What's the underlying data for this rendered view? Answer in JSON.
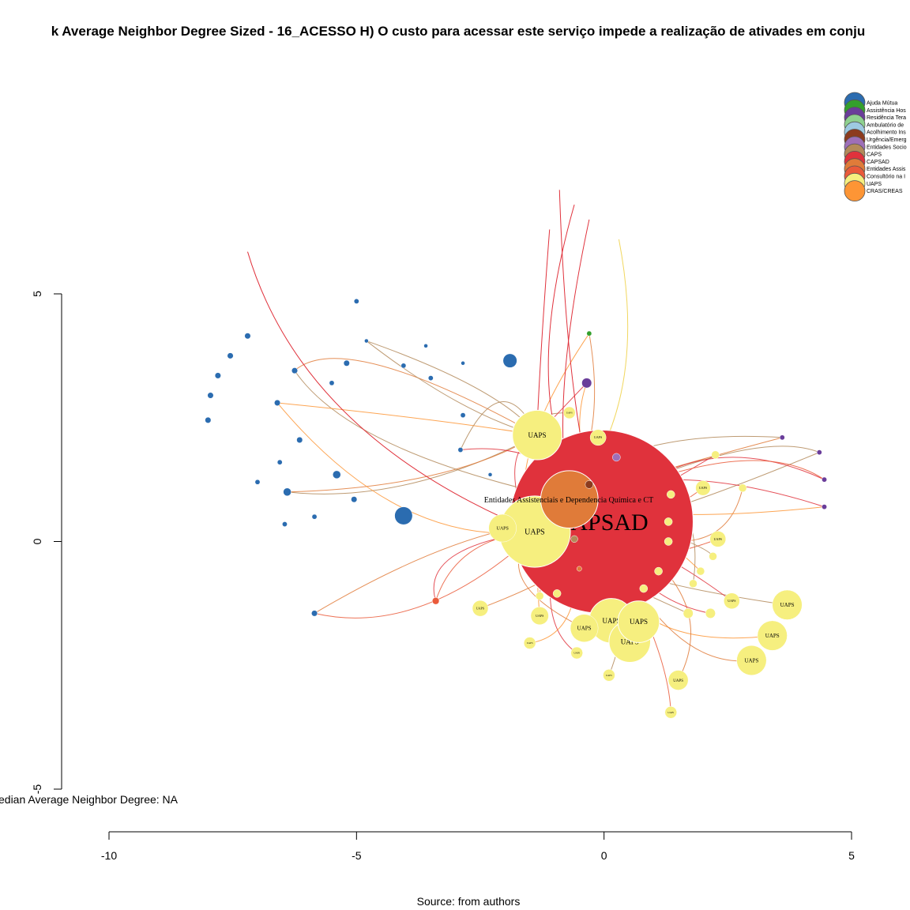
{
  "title": "k Average Neighbor Degree Sized - 16_ACESSO H) O custo para acessar este serviço impede a realização de ativades em conju",
  "median_text": "edian Average Neighbor Degree: NA",
  "caption": "Source: from authors",
  "axes": {
    "x": {
      "range": [
        -10,
        5
      ],
      "ticks": [
        -10,
        -5,
        0,
        5
      ],
      "tick_labels": [
        "-10",
        "-5",
        "0",
        "5"
      ]
    },
    "y": {
      "range": [
        -5,
        5
      ],
      "ticks": [
        -5,
        0,
        5
      ],
      "tick_labels": [
        "-5",
        "0",
        "5"
      ]
    }
  },
  "legend": [
    {
      "label": "Ajuda Mútua",
      "color": "#2b6cb0"
    },
    {
      "label": "Assistência Hos",
      "color": "#33a02c"
    },
    {
      "label": "Residência Tera",
      "color": "#6a3d9a"
    },
    {
      "label": "Ambulatório de",
      "color": "#8fd18f"
    },
    {
      "label": "Acolhimento Ins",
      "color": "#9ecae1"
    },
    {
      "label": "Urgência/Emerg",
      "color": "#8c3b1e"
    },
    {
      "label": "Entidades Socio",
      "color": "#9e6fb8"
    },
    {
      "label": "CAPS",
      "color": "#b38a5a"
    },
    {
      "label": "CAPSAD",
      "color": "#e0323c"
    },
    {
      "label": "Entidades Assis",
      "color": "#e07b39"
    },
    {
      "label": "Consultório na I",
      "color": "#ea5a3a"
    },
    {
      "label": "UAPS",
      "color": "#f6ef7f"
    },
    {
      "label": "CRAS/CREAS",
      "color": "#fd9535"
    }
  ],
  "nodes": [
    {
      "x": -0.05,
      "y": 0.4,
      "r": 1.85,
      "color": "#e0323c",
      "label": "CAPSAD",
      "fs": 30
    },
    {
      "x": -0.7,
      "y": 0.85,
      "r": 0.58,
      "color": "#e07b39",
      "label": "",
      "fs": 0
    },
    {
      "x": -1.4,
      "y": 0.2,
      "r": 0.72,
      "color": "#f6ef7f",
      "label": "UAPS",
      "fs": 10
    },
    {
      "x": -1.35,
      "y": 2.15,
      "r": 0.5,
      "color": "#f6ef7f",
      "label": "UAPS",
      "fs": 9
    },
    {
      "x": 0.15,
      "y": -1.6,
      "r": 0.45,
      "color": "#f6ef7f",
      "label": "UAPS",
      "fs": 9
    },
    {
      "x": 0.7,
      "y": -1.62,
      "r": 0.42,
      "color": "#f6ef7f",
      "label": "UAPS",
      "fs": 9
    },
    {
      "x": 0.52,
      "y": -2.02,
      "r": 0.42,
      "color": "#f6ef7f",
      "label": "UAPS",
      "fs": 9
    },
    {
      "x": -0.4,
      "y": -1.75,
      "r": 0.28,
      "color": "#f6ef7f",
      "label": "UAPS",
      "fs": 7
    },
    {
      "x": 3.7,
      "y": -1.28,
      "r": 0.3,
      "color": "#f6ef7f",
      "label": "UAPS",
      "fs": 7
    },
    {
      "x": 3.4,
      "y": -1.9,
      "r": 0.3,
      "color": "#f6ef7f",
      "label": "UAPS",
      "fs": 7
    },
    {
      "x": 2.98,
      "y": -2.4,
      "r": 0.3,
      "color": "#f6ef7f",
      "label": "UAPS",
      "fs": 7
    },
    {
      "x": -2.05,
      "y": 0.27,
      "r": 0.28,
      "color": "#f6ef7f",
      "label": "UAPS",
      "fs": 6
    },
    {
      "x": 1.5,
      "y": -2.8,
      "r": 0.2,
      "color": "#f6ef7f",
      "label": "UAPS",
      "fs": 5
    },
    {
      "x": 2.58,
      "y": -1.2,
      "r": 0.16,
      "color": "#f6ef7f",
      "label": "UAPS",
      "fs": 4
    },
    {
      "x": -1.3,
      "y": -1.5,
      "r": 0.18,
      "color": "#f6ef7f",
      "label": "UAPS",
      "fs": 4
    },
    {
      "x": -2.5,
      "y": -1.35,
      "r": 0.16,
      "color": "#f6ef7f",
      "label": "UAPS",
      "fs": 4
    },
    {
      "x": 2.3,
      "y": 0.05,
      "r": 0.16,
      "color": "#f6ef7f",
      "label": "UAPS",
      "fs": 4
    },
    {
      "x": -0.12,
      "y": 2.1,
      "r": 0.16,
      "color": "#f6ef7f",
      "label": "UAPS",
      "fs": 4
    },
    {
      "x": 2.0,
      "y": 1.08,
      "r": 0.15,
      "color": "#f6ef7f",
      "label": "UAPS",
      "fs": 4
    },
    {
      "x": -0.7,
      "y": 2.6,
      "r": 0.12,
      "color": "#f6ef7f",
      "label": "UAPS",
      "fs": 3
    },
    {
      "x": 0.1,
      "y": -2.7,
      "r": 0.12,
      "color": "#f6ef7f",
      "label": "UAPS",
      "fs": 3
    },
    {
      "x": -0.55,
      "y": -2.25,
      "r": 0.12,
      "color": "#f6ef7f",
      "label": "UAPS",
      "fs": 3
    },
    {
      "x": -1.5,
      "y": -2.05,
      "r": 0.12,
      "color": "#f6ef7f",
      "label": "UAPS",
      "fs": 3
    },
    {
      "x": 1.35,
      "y": -3.45,
      "r": 0.12,
      "color": "#f6ef7f",
      "label": "UAPS",
      "fs": 3
    },
    {
      "x": 1.7,
      "y": -1.45,
      "r": 0.1,
      "color": "#f6ef7f",
      "label": "",
      "fs": 0
    },
    {
      "x": 2.15,
      "y": -1.45,
      "r": 0.1,
      "color": "#f6ef7f",
      "label": "",
      "fs": 0
    },
    {
      "x": 1.8,
      "y": -0.85,
      "r": 0.08,
      "color": "#f6ef7f",
      "label": "",
      "fs": 0
    },
    {
      "x": 1.95,
      "y": -0.6,
      "r": 0.08,
      "color": "#f6ef7f",
      "label": "",
      "fs": 0
    },
    {
      "x": 2.2,
      "y": -0.3,
      "r": 0.08,
      "color": "#f6ef7f",
      "label": "",
      "fs": 0
    },
    {
      "x": 2.8,
      "y": 1.08,
      "r": 0.08,
      "color": "#f6ef7f",
      "label": "",
      "fs": 0
    },
    {
      "x": 2.25,
      "y": 1.75,
      "r": 0.08,
      "color": "#f6ef7f",
      "label": "",
      "fs": 0
    },
    {
      "x": 1.1,
      "y": -0.6,
      "r": 0.08,
      "color": "#f6ef7f",
      "label": "",
      "fs": 0
    },
    {
      "x": 1.3,
      "y": 0.0,
      "r": 0.08,
      "color": "#f6ef7f",
      "label": "",
      "fs": 0
    },
    {
      "x": 1.3,
      "y": 0.4,
      "r": 0.08,
      "color": "#f6ef7f",
      "label": "",
      "fs": 0
    },
    {
      "x": 1.35,
      "y": 0.95,
      "r": 0.08,
      "color": "#f6ef7f",
      "label": "",
      "fs": 0
    },
    {
      "x": -1.3,
      "y": -1.1,
      "r": 0.08,
      "color": "#f6ef7f",
      "label": "",
      "fs": 0
    },
    {
      "x": -0.95,
      "y": -1.05,
      "r": 0.08,
      "color": "#f6ef7f",
      "label": "",
      "fs": 0
    },
    {
      "x": 0.8,
      "y": -0.95,
      "r": 0.08,
      "color": "#f6ef7f",
      "label": "",
      "fs": 0
    },
    {
      "x": -4.05,
      "y": 0.52,
      "r": 0.18,
      "color": "#2b6cb0",
      "label": "",
      "fs": 0
    },
    {
      "x": -1.9,
      "y": 3.65,
      "r": 0.14,
      "color": "#2b6cb0",
      "label": "",
      "fs": 0
    },
    {
      "x": -6.4,
      "y": 1.0,
      "r": 0.08,
      "color": "#2b6cb0",
      "label": "",
      "fs": 0
    },
    {
      "x": -5.4,
      "y": 1.35,
      "r": 0.08,
      "color": "#2b6cb0",
      "label": "",
      "fs": 0
    },
    {
      "x": -6.25,
      "y": 3.45,
      "r": 0.06,
      "color": "#2b6cb0",
      "label": "",
      "fs": 0
    },
    {
      "x": -7.2,
      "y": 4.15,
      "r": 0.06,
      "color": "#2b6cb0",
      "label": "",
      "fs": 0
    },
    {
      "x": -7.55,
      "y": 3.75,
      "r": 0.06,
      "color": "#2b6cb0",
      "label": "",
      "fs": 0
    },
    {
      "x": -7.8,
      "y": 3.35,
      "r": 0.06,
      "color": "#2b6cb0",
      "label": "",
      "fs": 0
    },
    {
      "x": -7.95,
      "y": 2.95,
      "r": 0.06,
      "color": "#2b6cb0",
      "label": "",
      "fs": 0
    },
    {
      "x": -8.0,
      "y": 2.45,
      "r": 0.06,
      "color": "#2b6cb0",
      "label": "",
      "fs": 0
    },
    {
      "x": -6.6,
      "y": 2.8,
      "r": 0.06,
      "color": "#2b6cb0",
      "label": "",
      "fs": 0
    },
    {
      "x": -6.15,
      "y": 2.05,
      "r": 0.06,
      "color": "#2b6cb0",
      "label": "",
      "fs": 0
    },
    {
      "x": -6.55,
      "y": 1.6,
      "r": 0.05,
      "color": "#2b6cb0",
      "label": "",
      "fs": 0
    },
    {
      "x": -7.0,
      "y": 1.2,
      "r": 0.05,
      "color": "#2b6cb0",
      "label": "",
      "fs": 0
    },
    {
      "x": -6.45,
      "y": 0.35,
      "r": 0.05,
      "color": "#2b6cb0",
      "label": "",
      "fs": 0
    },
    {
      "x": -5.85,
      "y": 0.5,
      "r": 0.05,
      "color": "#2b6cb0",
      "label": "",
      "fs": 0
    },
    {
      "x": -5.05,
      "y": 0.85,
      "r": 0.06,
      "color": "#2b6cb0",
      "label": "",
      "fs": 0
    },
    {
      "x": -5.5,
      "y": 3.2,
      "r": 0.05,
      "color": "#2b6cb0",
      "label": "",
      "fs": 0
    },
    {
      "x": -5.2,
      "y": 3.6,
      "r": 0.06,
      "color": "#2b6cb0",
      "label": "",
      "fs": 0
    },
    {
      "x": -4.05,
      "y": 3.55,
      "r": 0.05,
      "color": "#2b6cb0",
      "label": "",
      "fs": 0
    },
    {
      "x": -3.5,
      "y": 3.3,
      "r": 0.05,
      "color": "#2b6cb0",
      "label": "",
      "fs": 0
    },
    {
      "x": -4.8,
      "y": 4.05,
      "r": 0.04,
      "color": "#2b6cb0",
      "label": "",
      "fs": 0
    },
    {
      "x": -3.6,
      "y": 3.95,
      "r": 0.04,
      "color": "#2b6cb0",
      "label": "",
      "fs": 0
    },
    {
      "x": -5.0,
      "y": 4.85,
      "r": 0.05,
      "color": "#2b6cb0",
      "label": "",
      "fs": 0
    },
    {
      "x": -5.85,
      "y": -1.45,
      "r": 0.06,
      "color": "#2b6cb0",
      "label": "",
      "fs": 0
    },
    {
      "x": -2.85,
      "y": 3.6,
      "r": 0.04,
      "color": "#2b6cb0",
      "label": "",
      "fs": 0
    },
    {
      "x": -2.85,
      "y": 2.55,
      "r": 0.05,
      "color": "#2b6cb0",
      "label": "",
      "fs": 0
    },
    {
      "x": -2.9,
      "y": 1.85,
      "r": 0.05,
      "color": "#2b6cb0",
      "label": "",
      "fs": 0
    },
    {
      "x": -2.3,
      "y": 1.35,
      "r": 0.04,
      "color": "#2b6cb0",
      "label": "",
      "fs": 0
    },
    {
      "x": -0.35,
      "y": 3.2,
      "r": 0.1,
      "color": "#6a3d9a",
      "label": "",
      "fs": 0
    },
    {
      "x": 3.6,
      "y": 2.1,
      "r": 0.05,
      "color": "#6a3d9a",
      "label": "",
      "fs": 0
    },
    {
      "x": 4.35,
      "y": 1.8,
      "r": 0.05,
      "color": "#6a3d9a",
      "label": "",
      "fs": 0
    },
    {
      "x": 4.45,
      "y": 1.25,
      "r": 0.05,
      "color": "#6a3d9a",
      "label": "",
      "fs": 0
    },
    {
      "x": 4.45,
      "y": 0.7,
      "r": 0.05,
      "color": "#6a3d9a",
      "label": "",
      "fs": 0
    },
    {
      "x": 0.25,
      "y": 1.7,
      "r": 0.08,
      "color": "#9e6fb8",
      "label": "",
      "fs": 0
    },
    {
      "x": -0.3,
      "y": 1.15,
      "r": 0.08,
      "color": "#8c3b1e",
      "label": "",
      "fs": 0
    },
    {
      "x": -0.3,
      "y": 4.2,
      "r": 0.05,
      "color": "#33a02c",
      "label": "",
      "fs": 0
    },
    {
      "x": -3.4,
      "y": -1.2,
      "r": 0.07,
      "color": "#ea5a3a",
      "label": "",
      "fs": 0
    },
    {
      "x": -0.6,
      "y": 0.05,
      "r": 0.07,
      "color": "#b38a5a",
      "label": "",
      "fs": 0
    },
    {
      "x": -0.5,
      "y": -0.55,
      "r": 0.05,
      "color": "#e07b39",
      "label": "",
      "fs": 0
    }
  ],
  "node_annotation": "Entidades Assistenciais e Dependencia Química e CT"
}
